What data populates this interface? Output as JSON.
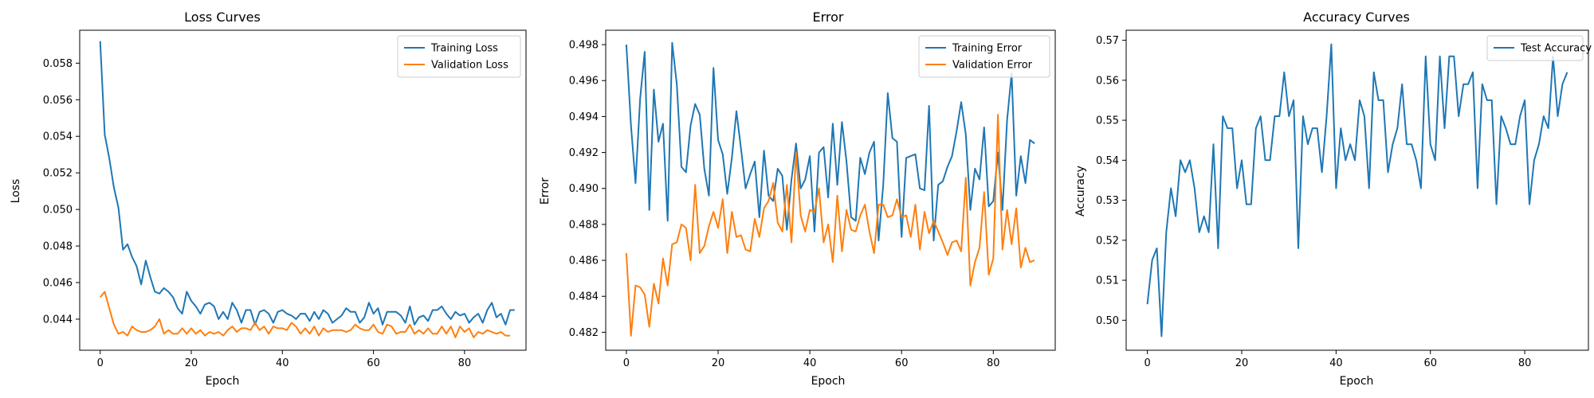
{
  "chart_data": [
    {
      "type": "line",
      "title": "Loss Curves",
      "xlabel": "Epoch",
      "ylabel": "Loss",
      "xlim": [
        -4.5,
        93.5
      ],
      "ylim": [
        0.0423,
        0.0598
      ],
      "xticks": [
        0,
        20,
        40,
        60,
        80
      ],
      "yticks": [
        0.044,
        0.046,
        0.048,
        0.05,
        0.052,
        0.054,
        0.056,
        0.058
      ],
      "ytick_labels": [
        "0.044",
        "0.046",
        "0.048",
        "0.050",
        "0.052",
        "0.054",
        "0.056",
        "0.058"
      ],
      "grid": false,
      "legend": "upper right",
      "series": [
        {
          "name": "Training Loss",
          "color": "#1f77b4",
          "values": [
            0.0592,
            0.0541,
            0.0528,
            0.0512,
            0.0501,
            0.0478,
            0.0481,
            0.0474,
            0.0469,
            0.0459,
            0.0472,
            0.0463,
            0.0455,
            0.0454,
            0.0457,
            0.0455,
            0.0452,
            0.0446,
            0.0443,
            0.0455,
            0.045,
            0.0447,
            0.0443,
            0.0448,
            0.0449,
            0.0447,
            0.044,
            0.0444,
            0.044,
            0.0449,
            0.0445,
            0.0438,
            0.0445,
            0.0445,
            0.0437,
            0.0444,
            0.0445,
            0.0443,
            0.0438,
            0.0444,
            0.0445,
            0.0443,
            0.0442,
            0.044,
            0.0443,
            0.0443,
            0.0439,
            0.0444,
            0.044,
            0.0445,
            0.0443,
            0.0438,
            0.044,
            0.0442,
            0.0446,
            0.0444,
            0.0444,
            0.0438,
            0.0441,
            0.0449,
            0.0443,
            0.0446,
            0.0437,
            0.0444,
            0.0444,
            0.0444,
            0.0442,
            0.0438,
            0.0447,
            0.0437,
            0.0441,
            0.0442,
            0.0439,
            0.0445,
            0.0445,
            0.0447,
            0.0443,
            0.044,
            0.0444,
            0.0442,
            0.0443,
            0.0438,
            0.0441,
            0.0443,
            0.0438,
            0.0445,
            0.0449,
            0.0441,
            0.0443,
            0.0437,
            0.0445,
            0.0445
          ]
        },
        {
          "name": "Validation Loss",
          "color": "#ff7f0e",
          "values": [
            0.0452,
            0.0455,
            0.0446,
            0.0437,
            0.0432,
            0.0433,
            0.0431,
            0.0436,
            0.0434,
            0.0433,
            0.0433,
            0.0434,
            0.0436,
            0.044,
            0.0432,
            0.0434,
            0.0432,
            0.0432,
            0.0435,
            0.0432,
            0.0435,
            0.0432,
            0.0434,
            0.0431,
            0.0433,
            0.0432,
            0.0433,
            0.0431,
            0.0434,
            0.0436,
            0.0433,
            0.0435,
            0.0435,
            0.0434,
            0.0438,
            0.0434,
            0.0436,
            0.0432,
            0.0436,
            0.0435,
            0.0435,
            0.0434,
            0.0438,
            0.0436,
            0.0432,
            0.0435,
            0.0432,
            0.0436,
            0.0431,
            0.0435,
            0.0433,
            0.0434,
            0.0434,
            0.0434,
            0.0433,
            0.0434,
            0.0437,
            0.0435,
            0.0434,
            0.0434,
            0.0437,
            0.0433,
            0.0432,
            0.0437,
            0.0436,
            0.0432,
            0.0433,
            0.0433,
            0.0437,
            0.0432,
            0.0434,
            0.0432,
            0.0435,
            0.0432,
            0.0432,
            0.0436,
            0.0432,
            0.0436,
            0.043,
            0.0436,
            0.0433,
            0.0435,
            0.043,
            0.0433,
            0.0432,
            0.0434,
            0.0433,
            0.0432,
            0.0433,
            0.0431,
            0.0431
          ]
        }
      ]
    },
    {
      "type": "line",
      "title": "Error",
      "xlabel": "Epoch",
      "ylabel": "Error",
      "xlim": [
        -4.5,
        93.5
      ],
      "ylim": [
        0.481,
        0.4988
      ],
      "xticks": [
        0,
        20,
        40,
        60,
        80
      ],
      "yticks": [
        0.482,
        0.484,
        0.486,
        0.488,
        0.49,
        0.492,
        0.494,
        0.496,
        0.498
      ],
      "ytick_labels": [
        "0.482",
        "0.484",
        "0.486",
        "0.488",
        "0.490",
        "0.492",
        "0.494",
        "0.496",
        "0.498"
      ],
      "grid": false,
      "legend": "upper right",
      "series": [
        {
          "name": "Training Error",
          "color": "#1f77b4",
          "values": [
            0.498,
            0.4935,
            0.4903,
            0.495,
            0.4976,
            0.4888,
            0.4955,
            0.4926,
            0.4936,
            0.4882,
            0.4981,
            0.4958,
            0.4912,
            0.4909,
            0.4935,
            0.4947,
            0.4941,
            0.4911,
            0.4896,
            0.4967,
            0.4927,
            0.4919,
            0.4897,
            0.4917,
            0.4943,
            0.4922,
            0.49,
            0.4908,
            0.4915,
            0.4884,
            0.4921,
            0.4896,
            0.4893,
            0.4911,
            0.4907,
            0.4877,
            0.4905,
            0.4925,
            0.49,
            0.4905,
            0.4918,
            0.4876,
            0.492,
            0.4923,
            0.4895,
            0.4936,
            0.4902,
            0.4937,
            0.4915,
            0.4884,
            0.4882,
            0.4917,
            0.4908,
            0.492,
            0.4926,
            0.4871,
            0.4902,
            0.4953,
            0.4928,
            0.4926,
            0.4873,
            0.4917,
            0.4918,
            0.4919,
            0.49,
            0.4899,
            0.4946,
            0.4871,
            0.4902,
            0.4904,
            0.4912,
            0.4918,
            0.4932,
            0.4948,
            0.493,
            0.4888,
            0.4911,
            0.4905,
            0.4934,
            0.489,
            0.4893,
            0.492,
            0.4888,
            0.4938,
            0.4964,
            0.4896,
            0.4918,
            0.4903,
            0.4927,
            0.4925
          ]
        },
        {
          "name": "Validation Error",
          "color": "#ff7f0e",
          "values": [
            0.4864,
            0.4818,
            0.4846,
            0.4845,
            0.4841,
            0.4823,
            0.4847,
            0.4836,
            0.4861,
            0.4846,
            0.4869,
            0.487,
            0.488,
            0.4878,
            0.486,
            0.4902,
            0.4864,
            0.4868,
            0.4879,
            0.4887,
            0.4878,
            0.4894,
            0.4864,
            0.4887,
            0.4873,
            0.4874,
            0.4866,
            0.4865,
            0.4883,
            0.4873,
            0.4889,
            0.4893,
            0.4903,
            0.4881,
            0.4876,
            0.4902,
            0.487,
            0.492,
            0.4885,
            0.4876,
            0.4888,
            0.4887,
            0.49,
            0.487,
            0.488,
            0.4859,
            0.4896,
            0.4865,
            0.4888,
            0.4877,
            0.4876,
            0.4885,
            0.4891,
            0.4876,
            0.4864,
            0.4891,
            0.4891,
            0.4884,
            0.4885,
            0.4894,
            0.4884,
            0.4885,
            0.4873,
            0.4891,
            0.4866,
            0.4887,
            0.4875,
            0.4882,
            0.4876,
            0.487,
            0.4863,
            0.487,
            0.4871,
            0.4865,
            0.4906,
            0.4846,
            0.4859,
            0.4867,
            0.4898,
            0.4852,
            0.4861,
            0.4941,
            0.4866,
            0.4888,
            0.4869,
            0.4889,
            0.4856,
            0.4867,
            0.4859,
            0.486
          ]
        }
      ]
    },
    {
      "type": "line",
      "title": "Accuracy Curves",
      "xlabel": "Epoch",
      "ylabel": "Accuracy",
      "xlim": [
        -4.5,
        93.5
      ],
      "ylim": [
        0.4925,
        0.5725
      ],
      "xticks": [
        0,
        20,
        40,
        60,
        80
      ],
      "yticks": [
        0.5,
        0.51,
        0.52,
        0.53,
        0.54,
        0.55,
        0.56,
        0.57
      ],
      "ytick_labels": [
        "0.50",
        "0.51",
        "0.52",
        "0.53",
        "0.54",
        "0.55",
        "0.56",
        "0.57"
      ],
      "grid": false,
      "legend": "upper right",
      "series": [
        {
          "name": "Test Accuracy",
          "color": "#1f77b4",
          "values": [
            0.504,
            0.515,
            0.518,
            0.496,
            0.522,
            0.533,
            0.526,
            0.54,
            0.537,
            0.54,
            0.533,
            0.522,
            0.526,
            0.522,
            0.544,
            0.518,
            0.551,
            0.548,
            0.548,
            0.533,
            0.54,
            0.529,
            0.529,
            0.548,
            0.551,
            0.54,
            0.54,
            0.551,
            0.551,
            0.562,
            0.551,
            0.555,
            0.518,
            0.551,
            0.544,
            0.548,
            0.548,
            0.537,
            0.551,
            0.569,
            0.533,
            0.548,
            0.54,
            0.544,
            0.54,
            0.555,
            0.551,
            0.533,
            0.562,
            0.555,
            0.555,
            0.537,
            0.544,
            0.548,
            0.559,
            0.544,
            0.544,
            0.54,
            0.533,
            0.566,
            0.544,
            0.54,
            0.566,
            0.548,
            0.566,
            0.566,
            0.551,
            0.559,
            0.559,
            0.562,
            0.533,
            0.559,
            0.555,
            0.555,
            0.529,
            0.551,
            0.548,
            0.544,
            0.544,
            0.551,
            0.555,
            0.529,
            0.54,
            0.544,
            0.551,
            0.548,
            0.566,
            0.551,
            0.559,
            0.562
          ]
        }
      ]
    }
  ]
}
